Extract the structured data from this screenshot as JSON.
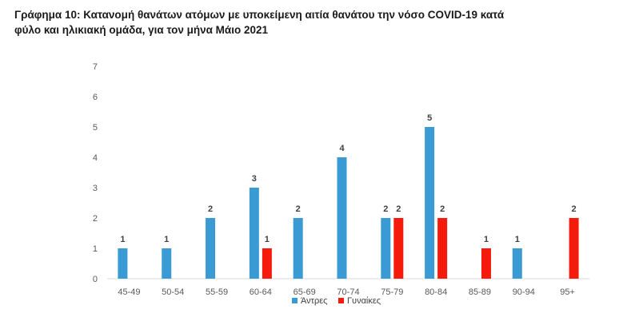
{
  "title_line1": "Γράφημα 10: Κατανομή θανάτων ατόμων με υποκείμενη αιτία θανάτου την νόσο COVID-19 κατά",
  "title_line2": "φύλο και ηλικιακή ομάδα, για τον μήνα Μάιο 2021",
  "chart_data": {
    "type": "bar",
    "title": "Γράφημα 10: Κατανομή θανάτων ατόμων με υποκείμενη αιτία θανάτου την νόσο COVID-19 κατά φύλο και ηλικιακή ομάδα, για τον μήνα Μάιο 2021",
    "categories": [
      "45-49",
      "50-54",
      "55-59",
      "60-64",
      "65-69",
      "70-74",
      "75-79",
      "80-84",
      "85-89",
      "90-94",
      "95+"
    ],
    "series": [
      {
        "name": "Άντρες",
        "color": "#3a9ad4",
        "values": [
          1,
          1,
          2,
          3,
          2,
          4,
          2,
          5,
          0,
          1,
          0
        ]
      },
      {
        "name": "Γυναίκες",
        "color": "#f41a0c",
        "values": [
          0,
          0,
          0,
          1,
          0,
          0,
          2,
          2,
          1,
          0,
          2
        ]
      }
    ],
    "ylim": [
      0,
      7
    ],
    "yticks": [
      0,
      1,
      2,
      3,
      4,
      5,
      6,
      7
    ],
    "grid": false,
    "data_labels": true,
    "legend_position": "bottom"
  }
}
